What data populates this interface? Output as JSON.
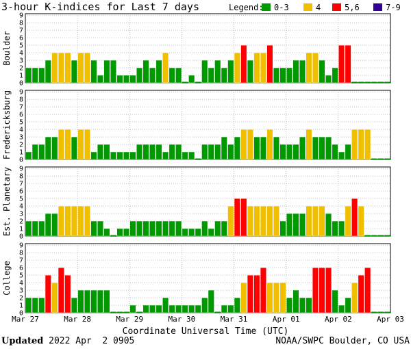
{
  "colors": {
    "quiet": "#009900",
    "k4": "#f0c000",
    "k5_6": "#ff0000",
    "k7_9": "#330099"
  },
  "chart_data": {
    "type": "bar",
    "title": "3-hour K-indices for Last 7 days",
    "legend": {
      "label": "Legend:",
      "placement": "top-right",
      "items": [
        {
          "label": "0-3",
          "color": "#009900"
        },
        {
          "label": "4",
          "color": "#f0c000"
        },
        {
          "label": "5,6",
          "color": "#ff0000"
        },
        {
          "label": "7-9",
          "color": "#330099"
        }
      ]
    },
    "xlabel": "Coordinate Universal Time (UTC)",
    "x_ticks": [
      "Mar 27",
      "Mar 28",
      "Mar 29",
      "Mar 30",
      "Mar 31",
      "Apr 01",
      "Apr 02",
      "Apr 03"
    ],
    "y_ticks": [
      0,
      1,
      2,
      3,
      4,
      5,
      6,
      7,
      8,
      9
    ],
    "ylim": [
      0,
      9
    ],
    "grid": true,
    "series": [
      {
        "name": "Boulder",
        "values": [
          2,
          2,
          2,
          3,
          4,
          4,
          4,
          3,
          4,
          4,
          3,
          1,
          3,
          3,
          1,
          1,
          1,
          2,
          3,
          2,
          3,
          4,
          2,
          2,
          0,
          1,
          0,
          3,
          2,
          3,
          2,
          3,
          4,
          5,
          3,
          4,
          4,
          5,
          2,
          2,
          2,
          3,
          3,
          4,
          4,
          3,
          1,
          2,
          5,
          5,
          0,
          0,
          0,
          0,
          0,
          0
        ]
      },
      {
        "name": "Fredericksburg",
        "values": [
          1,
          2,
          2,
          3,
          3,
          4,
          4,
          3,
          4,
          4,
          1,
          2,
          2,
          1,
          1,
          1,
          1,
          2,
          2,
          2,
          2,
          1,
          2,
          2,
          1,
          1,
          0,
          2,
          2,
          2,
          3,
          2,
          3,
          4,
          4,
          3,
          3,
          4,
          3,
          2,
          2,
          2,
          3,
          4,
          3,
          3,
          3,
          2,
          1,
          2,
          4,
          4,
          4,
          0,
          0,
          0
        ]
      },
      {
        "name": "Est. Planetary",
        "values": [
          2,
          2,
          2,
          3,
          3,
          4,
          4,
          4,
          4,
          4,
          2,
          2,
          1,
          0,
          1,
          1,
          2,
          2,
          2,
          2,
          2,
          2,
          2,
          2,
          1,
          1,
          1,
          2,
          1,
          2,
          2,
          4,
          5,
          5,
          4,
          4,
          4,
          4,
          4,
          2,
          3,
          3,
          3,
          4,
          4,
          4,
          3,
          2,
          2,
          4,
          5,
          4,
          0,
          0,
          0,
          0
        ]
      },
      {
        "name": "College",
        "values": [
          2,
          2,
          2,
          5,
          4,
          6,
          5,
          2,
          3,
          3,
          3,
          3,
          3,
          0,
          0,
          0,
          1,
          0,
          1,
          1,
          1,
          2,
          1,
          1,
          1,
          1,
          1,
          2,
          3,
          0,
          1,
          1,
          2,
          4,
          5,
          5,
          6,
          4,
          4,
          4,
          2,
          3,
          2,
          2,
          6,
          6,
          6,
          3,
          1,
          2,
          4,
          5,
          6,
          0,
          0,
          0
        ]
      }
    ]
  },
  "footer": {
    "updated_label": "Updated",
    "updated_value": " 2022 Apr  2 0905",
    "source": "NOAA/SWPC Boulder, CO USA"
  }
}
